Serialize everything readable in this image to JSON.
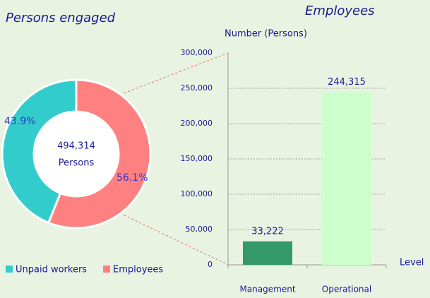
{
  "chart_data": [
    {
      "type": "donut",
      "title": "Persons engaged",
      "center_text": [
        "494,314",
        "Persons"
      ],
      "categories": [
        "Unpaid workers",
        "Employees"
      ],
      "values": [
        43.9,
        56.1
      ],
      "value_labels": [
        "43.9%",
        "56.1%"
      ],
      "colors": [
        "#33cccc",
        "#ff8080"
      ]
    },
    {
      "type": "bar",
      "title": "Employees",
      "y_label": "Number (Persons)",
      "x_label": "Level",
      "categories": [
        "Management",
        "Operational"
      ],
      "values": [
        33222,
        244315
      ],
      "value_labels": [
        "33,222",
        "244,315"
      ],
      "colors": [
        "#339966",
        "#ccffcc"
      ],
      "ylim": [
        0,
        300000
      ],
      "yticks": [
        0,
        {
          "value": 50000,
          "label": "50,000"
        },
        {
          "value": 100000,
          "label": "100,000"
        },
        {
          "value": 150000,
          "label": "150,000"
        },
        {
          "value": 200000,
          "label": "200,000"
        },
        {
          "value": 250000,
          "label": "250,000"
        },
        {
          "value": 300000,
          "label": "300,000"
        }
      ],
      "grid": true
    }
  ]
}
